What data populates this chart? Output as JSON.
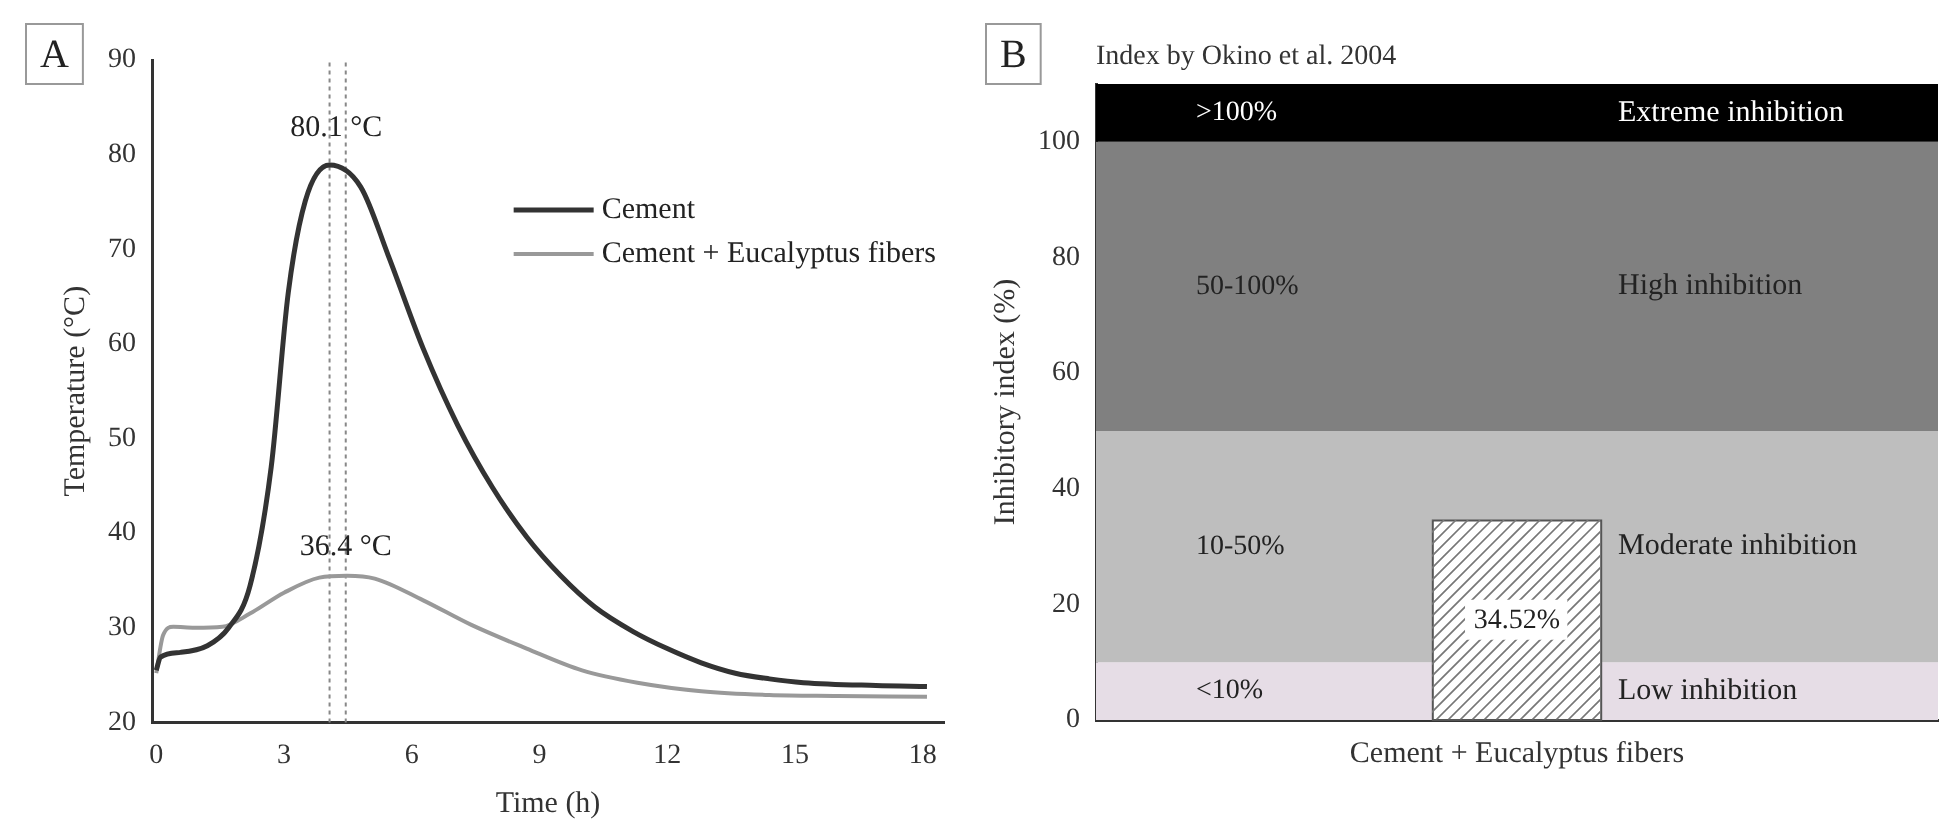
{
  "chart_data": [
    {
      "type": "line",
      "xlabel": "Time (h)",
      "ylabel": "Temperature (°C)",
      "xlim": [
        -0.1,
        18.5
      ],
      "xticks": [
        0,
        3,
        6,
        9,
        12,
        15,
        18
      ],
      "ylim": [
        20,
        90
      ],
      "yticks": [
        20,
        30,
        40,
        50,
        60,
        70,
        80,
        90
      ],
      "grid": false,
      "legend": "top right",
      "marker": "none",
      "line_style": "solid",
      "series": [
        {
          "name": "Cement",
          "color": "#333333",
          "x": [
            0,
            0.1,
            0.57,
            1.2,
            1.7,
            2.2,
            2.7,
            3.1,
            3.5,
            4.07,
            4.8,
            5.46,
            6.27,
            7.08,
            7.9,
            8.7,
            9.5,
            10.3,
            11.2,
            12.0,
            12.8,
            13.6,
            14.4,
            15.2,
            16.9,
            18.1
          ],
          "values": [
            25.5,
            26.9,
            27.4,
            28.1,
            30.0,
            34.4,
            47.0,
            65.4,
            75.1,
            78.9,
            76.6,
            69.2,
            59.5,
            51.4,
            44.8,
            39.6,
            35.5,
            32.2,
            29.6,
            27.8,
            26.3,
            25.2,
            24.6,
            24.2,
            23.9,
            23.8
          ]
        },
        {
          "name": "Cement + Eucalyptus fibers",
          "color": "#999999",
          "x": [
            0,
            0.16,
            0.4,
            0.9,
            1.55,
            2.2,
            3.0,
            3.83,
            4.48,
            5.13,
            6.27,
            7.4,
            8.7,
            10.0,
            11.3,
            12.8,
            14.4,
            16.0,
            18.1
          ],
          "values": [
            25.2,
            29.2,
            30.1,
            30.0,
            30.1,
            31.5,
            33.7,
            35.3,
            35.5,
            35.2,
            32.9,
            30.3,
            27.8,
            25.5,
            24.2,
            23.3,
            22.9,
            22.8,
            22.7
          ]
        }
      ],
      "ref_lines": [
        {
          "axis": "x",
          "value": 4.07,
          "color": "#888888",
          "line_style": "dotted"
        },
        {
          "axis": "x",
          "value": 4.45,
          "color": "#888888",
          "line_style": "dotted"
        }
      ],
      "annotations": [
        "A",
        {
          "text": "80.1 °C",
          "x": 4.23,
          "y": 82.8
        },
        {
          "text": "36.4 °C",
          "x": 4.45,
          "y": 38.5
        }
      ]
    },
    {
      "type": "bar",
      "title": "Index by Okino et al. 2004",
      "ylabel": "Inhibitory index (%)",
      "categories": [
        "Cement + Eucalyptus fibers"
      ],
      "values": [
        34.52
      ],
      "value_labels": [
        "34.52%"
      ],
      "color": "#ffffff",
      "ylim": [
        0,
        110
      ],
      "yticks": [
        0,
        20,
        40,
        60,
        80,
        100
      ],
      "grid": false,
      "legend": false,
      "bands": [
        {
          "axis": "y",
          "from": 0,
          "to": 10,
          "label": "<10%",
          "color": "#e6dde6"
        },
        {
          "axis": "y",
          "from": 10,
          "to": 50,
          "label": "10-50%",
          "color": "#bebebe"
        },
        {
          "axis": "y",
          "from": 50,
          "to": 100,
          "label": "50-100%",
          "color": "#808080"
        },
        {
          "axis": "y",
          "from": 100,
          "to": 110,
          "label": ">100%",
          "color": "#000000"
        }
      ],
      "annotations": [
        "B",
        "Low inhibition",
        "Moderate inhibition",
        "High inhibition",
        "Extreme inhibition"
      ]
    }
  ]
}
